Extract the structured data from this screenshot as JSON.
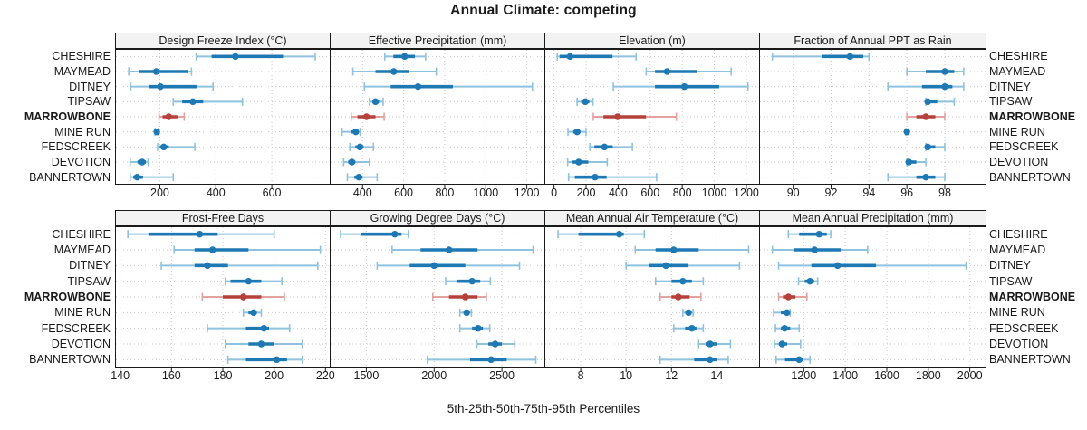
{
  "title": "Annual Climate: competing",
  "footer": "5th-25th-50th-75th-95th Percentiles",
  "sites": [
    "CHESHIRE",
    "MAYMEAD",
    "DITNEY",
    "TIPSAW",
    "MARROWBONE",
    "MINE RUN",
    "FEDSCREEK",
    "DEVOTION",
    "BANNERTOWN"
  ],
  "highlight_site": "MARROWBONE",
  "colors": {
    "series_main": "#1E78B4",
    "series_light": "#8FC2DF",
    "highlight_main": "#B6413A",
    "highlight_light": "#E2A29E",
    "grid": "#c9c9c9",
    "border": "#1a1a1a",
    "header_bg": "#f2f2f2",
    "text": "#1a1a1a"
  },
  "chart_data": {
    "type": "dotplot-intervals",
    "layout": "2 rows x 4 columns lattice, shared site axis",
    "percentiles": [
      5,
      25,
      50,
      75,
      95
    ],
    "panels": [
      {
        "slug": "design-freeze-index",
        "title": "Design Freeze Index (°C)",
        "xlim": [
          40,
          810
        ],
        "ticks": [
          200,
          400,
          600
        ],
        "rows": [
          {
            "site": "CHESHIRE",
            "values": [
              330,
              385,
              470,
              640,
              755
            ]
          },
          {
            "site": "MAYMEAD",
            "values": [
              89,
              125,
              187,
              300,
              313
            ]
          },
          {
            "site": "DITNEY",
            "values": [
              96,
              163,
              202,
              331,
              390
            ]
          },
          {
            "site": "TIPSAW",
            "values": [
              248,
              280,
              318,
              355,
              495
            ]
          },
          {
            "site": "MARROWBONE",
            "values": [
              197,
              210,
              232,
              263,
              287
            ]
          },
          {
            "site": "MINE RUN",
            "values": [
              183,
              186,
              189,
              192,
              195
            ]
          },
          {
            "site": "FEDSCREEK",
            "values": [
              192,
              200,
              214,
              232,
              325
            ]
          },
          {
            "site": "DEVOTION",
            "values": [
              94,
              120,
              137,
              150,
              158
            ]
          },
          {
            "site": "BANNERTOWN",
            "values": [
              94,
              105,
              119,
              140,
              248
            ]
          }
        ]
      },
      {
        "slug": "effective-precipitation",
        "title": "Effective Precipitation (mm)",
        "xlim": [
          240,
          1290
        ],
        "ticks": [
          400,
          600,
          800,
          1000,
          1200
        ],
        "rows": [
          {
            "site": "CHESHIRE",
            "values": [
              508,
              550,
              605,
              655,
              707
            ]
          },
          {
            "site": "MAYMEAD",
            "values": [
              353,
              463,
              552,
              626,
              759
            ]
          },
          {
            "site": "DITNEY",
            "values": [
              409,
              537,
              670,
              840,
              1227
            ]
          },
          {
            "site": "TIPSAW",
            "values": [
              434,
              450,
              463,
              480,
              500
            ]
          },
          {
            "site": "MARROWBONE",
            "values": [
              345,
              375,
              419,
              463,
              505
            ]
          },
          {
            "site": "MINE RUN",
            "values": [
              300,
              345,
              367,
              378,
              388
            ]
          },
          {
            "site": "FEDSCREEK",
            "values": [
              338,
              365,
              387,
              405,
              453
            ]
          },
          {
            "site": "DEVOTION",
            "values": [
              308,
              330,
              348,
              365,
              434
            ]
          },
          {
            "site": "BANNERTOWN",
            "values": [
              326,
              360,
              382,
              400,
              471
            ]
          }
        ]
      },
      {
        "slug": "elevation",
        "title": "Elevation (m)",
        "xlim": [
          -60,
          1285
        ],
        "ticks": [
          0,
          200,
          400,
          600,
          800,
          1000,
          1200
        ],
        "rows": [
          {
            "site": "CHESHIRE",
            "values": [
              20,
              35,
              100,
              365,
              512
            ]
          },
          {
            "site": "MAYMEAD",
            "values": [
              575,
              630,
              705,
              895,
              1105
            ]
          },
          {
            "site": "DITNEY",
            "values": [
              370,
              630,
              813,
              1030,
              1210
            ]
          },
          {
            "site": "TIPSAW",
            "values": [
              144,
              170,
              195,
              220,
              243
            ]
          },
          {
            "site": "MARROWBONE",
            "values": [
              245,
              308,
              397,
              574,
              763
            ]
          },
          {
            "site": "MINE RUN",
            "values": [
              87,
              120,
              144,
              165,
              200
            ]
          },
          {
            "site": "FEDSCREEK",
            "values": [
              224,
              252,
              315,
              366,
              489
            ]
          },
          {
            "site": "DEVOTION",
            "values": [
              85,
              110,
              154,
              214,
              332
            ]
          },
          {
            "site": "BANNERTOWN",
            "values": [
              91,
              130,
              256,
              328,
              640
            ]
          }
        ]
      },
      {
        "slug": "fraction-annual-ppt-as-rain",
        "title": "Fraction of Annual PPT as Rain",
        "xlim": [
          88.2,
          100.2
        ],
        "ticks": [
          90,
          92,
          94,
          96,
          98
        ],
        "rows": [
          {
            "site": "CHESHIRE",
            "values": [
              88.9,
              91.5,
              93.0,
              93.7,
              94.0
            ]
          },
          {
            "site": "MAYMEAD",
            "values": [
              96.0,
              97.0,
              98.0,
              98.5,
              99.0
            ]
          },
          {
            "site": "DITNEY",
            "values": [
              95.0,
              96.8,
              98.0,
              98.4,
              99.0
            ]
          },
          {
            "site": "TIPSAW",
            "values": [
              97.0,
              97.0,
              97.1,
              97.6,
              98.5
            ]
          },
          {
            "site": "MARROWBONE",
            "values": [
              96.0,
              96.5,
              97.0,
              97.5,
              98.0
            ]
          },
          {
            "site": "MINE RUN",
            "values": [
              95.95,
              96.0,
              96.0,
              96.05,
              96.1
            ]
          },
          {
            "site": "FEDSCREEK",
            "values": [
              97.0,
              97.0,
              97.1,
              97.5,
              98.0
            ]
          },
          {
            "site": "DEVOTION",
            "values": [
              96.0,
              96.0,
              96.1,
              96.5,
              97.0
            ]
          },
          {
            "site": "BANNERTOWN",
            "values": [
              95.0,
              96.5,
              97.0,
              97.5,
              98.0
            ]
          }
        ]
      },
      {
        "slug": "frost-free-days",
        "title": "Frost-Free Days",
        "xlim": [
          138,
          222
        ],
        "ticks": [
          140,
          160,
          180,
          200,
          220
        ],
        "rows": [
          {
            "site": "CHESHIRE",
            "values": [
              143,
              151,
              171,
              178,
              200
            ]
          },
          {
            "site": "MAYMEAD",
            "values": [
              161,
              169,
              176,
              190,
              218
            ]
          },
          {
            "site": "DITNEY",
            "values": [
              156,
              169,
              174,
              182,
              217
            ]
          },
          {
            "site": "TIPSAW",
            "values": [
              181,
              183,
              190,
              195,
              203
            ]
          },
          {
            "site": "MARROWBONE",
            "values": [
              172,
              180,
              188,
              195,
              204
            ]
          },
          {
            "site": "MINE RUN",
            "values": [
              188,
              190,
              192,
              193,
              195
            ]
          },
          {
            "site": "FEDSCREEK",
            "values": [
              174,
              189,
              196,
              198,
              206
            ]
          },
          {
            "site": "DEVOTION",
            "values": [
              181,
              190,
              195,
              200,
              211
            ]
          },
          {
            "site": "BANNERTOWN",
            "values": [
              182,
              189,
              201,
              205,
              211
            ]
          }
        ]
      },
      {
        "slug": "growing-degree-days",
        "title": "Growing Degree Days (°C)",
        "xlim": [
          1230,
          2820
        ],
        "ticks": [
          1500,
          2000,
          2500
        ],
        "rows": [
          {
            "site": "CHESHIRE",
            "values": [
              1310,
              1460,
              1710,
              1760,
              1810
            ]
          },
          {
            "site": "MAYMEAD",
            "values": [
              1690,
              1900,
              2110,
              2320,
              2730
            ]
          },
          {
            "site": "DITNEY",
            "values": [
              1580,
              1820,
              2000,
              2230,
              2630
            ]
          },
          {
            "site": "TIPSAW",
            "values": [
              2085,
              2165,
              2280,
              2340,
              2415
            ]
          },
          {
            "site": "MARROWBONE",
            "values": [
              1990,
              2110,
              2230,
              2320,
              2385
            ]
          },
          {
            "site": "MINE RUN",
            "values": [
              2190,
              2220,
              2240,
              2260,
              2275
            ]
          },
          {
            "site": "FEDSCREEK",
            "values": [
              2190,
              2280,
              2325,
              2360,
              2410
            ]
          },
          {
            "site": "DEVOTION",
            "values": [
              2315,
              2400,
              2450,
              2500,
              2595
            ]
          },
          {
            "site": "BANNERTOWN",
            "values": [
              1950,
              2265,
              2420,
              2535,
              2750
            ]
          }
        ]
      },
      {
        "slug": "mean-annual-air-temperature",
        "title": "Mean Annual Air Temperature (°C)",
        "xlim": [
          6.4,
          15.9
        ],
        "ticks": [
          8,
          10,
          12,
          14
        ],
        "rows": [
          {
            "site": "CHESHIRE",
            "values": [
              7.0,
              7.9,
              9.7,
              9.9,
              10.8
            ]
          },
          {
            "site": "MAYMEAD",
            "values": [
              10.4,
              11.3,
              12.1,
              13.2,
              15.4
            ]
          },
          {
            "site": "DITNEY",
            "values": [
              10.0,
              11.0,
              11.75,
              12.75,
              15.0
            ]
          },
          {
            "site": "TIPSAW",
            "values": [
              11.3,
              12.0,
              12.5,
              12.9,
              13.4
            ]
          },
          {
            "site": "MARROWBONE",
            "values": [
              11.5,
              12.0,
              12.3,
              12.8,
              13.3
            ]
          },
          {
            "site": "MINE RUN",
            "values": [
              12.5,
              12.65,
              12.75,
              12.85,
              12.95
            ]
          },
          {
            "site": "FEDSCREEK",
            "values": [
              12.1,
              12.6,
              12.9,
              13.1,
              13.4
            ]
          },
          {
            "site": "DEVOTION",
            "values": [
              13.2,
              13.5,
              13.7,
              14.0,
              14.6
            ]
          },
          {
            "site": "BANNERTOWN",
            "values": [
              11.5,
              13.0,
              13.7,
              14.0,
              14.5
            ]
          }
        ]
      },
      {
        "slug": "mean-annual-precipitation",
        "title": "Mean Annual Precipitation (mm)",
        "xlim": [
          985,
          2080
        ],
        "ticks": [
          1200,
          1400,
          1600,
          1800,
          2000
        ],
        "rows": [
          {
            "site": "CHESHIRE",
            "values": [
              1126,
              1178,
              1274,
              1311,
              1330
            ]
          },
          {
            "site": "MAYMEAD",
            "values": [
              1049,
              1153,
              1252,
              1378,
              1508
            ]
          },
          {
            "site": "DITNEY",
            "values": [
              1079,
              1237,
              1363,
              1548,
              1982
            ]
          },
          {
            "site": "TIPSAW",
            "values": [
              1175,
              1205,
              1230,
              1250,
              1267
            ]
          },
          {
            "site": "MARROWBONE",
            "values": [
              1079,
              1100,
              1126,
              1160,
              1215
            ]
          },
          {
            "site": "MINE RUN",
            "values": [
              1055,
              1090,
              1119,
              1128,
              1135
            ]
          },
          {
            "site": "FEDSCREEK",
            "values": [
              1064,
              1090,
              1108,
              1135,
              1178
            ]
          },
          {
            "site": "DEVOTION",
            "values": [
              1059,
              1080,
              1096,
              1120,
              1185
            ]
          },
          {
            "site": "BANNERTOWN",
            "values": [
              1067,
              1110,
              1178,
              1195,
              1230
            ]
          }
        ]
      }
    ]
  }
}
